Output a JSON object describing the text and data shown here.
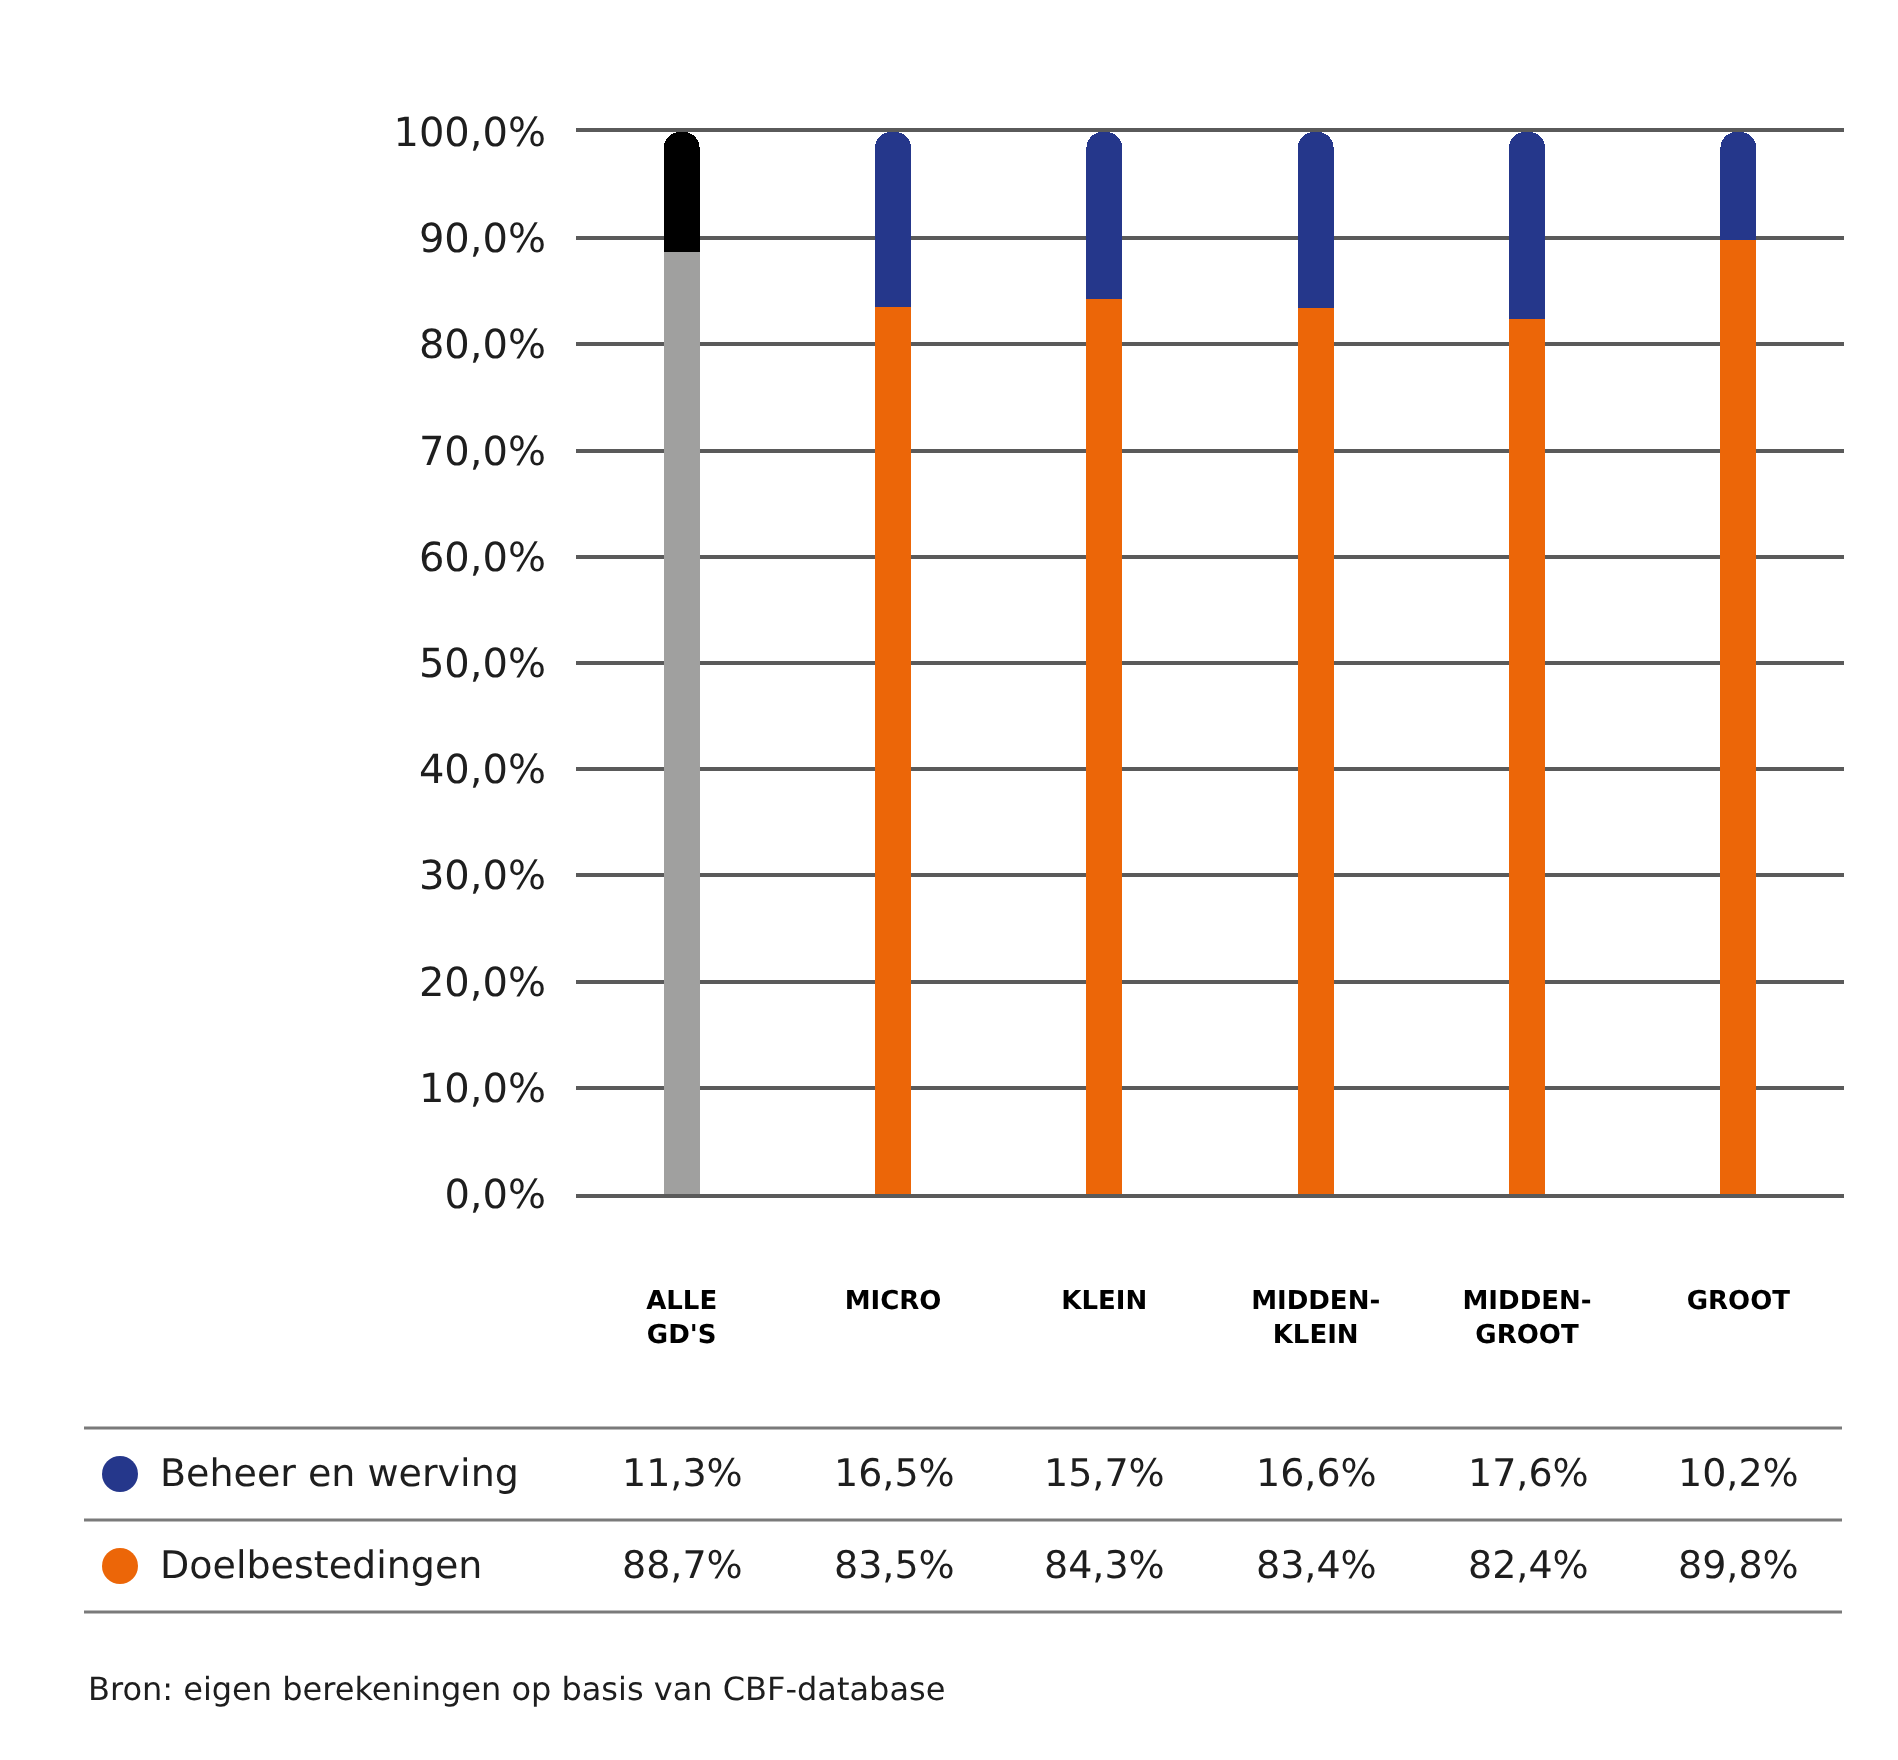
{
  "chart_data": {
    "type": "bar",
    "stacked": true,
    "categories": [
      "ALLE\nGD'S",
      "MICRO",
      "KLEIN",
      "MIDDEN-\nKLEIN",
      "MIDDEN-\nGROOT",
      "GROOT"
    ],
    "series": [
      {
        "name": "Doelbestedingen",
        "color": "#ec6608",
        "colors": [
          "#a0a09f",
          "#ec6608",
          "#ec6608",
          "#ec6608",
          "#ec6608",
          "#ec6608"
        ],
        "values": [
          88.7,
          83.5,
          84.3,
          83.4,
          82.4,
          89.8
        ],
        "value_labels": [
          "88,7%",
          "83,5%",
          "84,3%",
          "83,4%",
          "82,4%",
          "89,8%"
        ]
      },
      {
        "name": "Beheer en werving",
        "color": "#25378b",
        "colors": [
          "#000000",
          "#25378b",
          "#25378b",
          "#25378b",
          "#25378b",
          "#25378b"
        ],
        "values": [
          11.3,
          16.5,
          15.7,
          16.6,
          17.6,
          10.2
        ],
        "value_labels": [
          "11,3%",
          "16,5%",
          "15,7%",
          "16,6%",
          "17,6%",
          "10,2%"
        ]
      }
    ],
    "ylim": [
      0,
      100
    ],
    "yticks": [
      {
        "value": 0,
        "label": "0,0%"
      },
      {
        "value": 10,
        "label": "10,0%"
      },
      {
        "value": 20,
        "label": "20,0%"
      },
      {
        "value": 30,
        "label": "30,0%"
      },
      {
        "value": 40,
        "label": "40,0%"
      },
      {
        "value": 50,
        "label": "50,0%"
      },
      {
        "value": 60,
        "label": "60,0%"
      },
      {
        "value": 70,
        "label": "70,0%"
      },
      {
        "value": 80,
        "label": "80,0%"
      },
      {
        "value": 90,
        "label": "90,0%"
      },
      {
        "value": 100,
        "label": "100,0%"
      }
    ],
    "grid": "y",
    "legend": "bottom",
    "annotations": [
      "Bron: eigen berekeningen op basis van CBF-database"
    ]
  }
}
